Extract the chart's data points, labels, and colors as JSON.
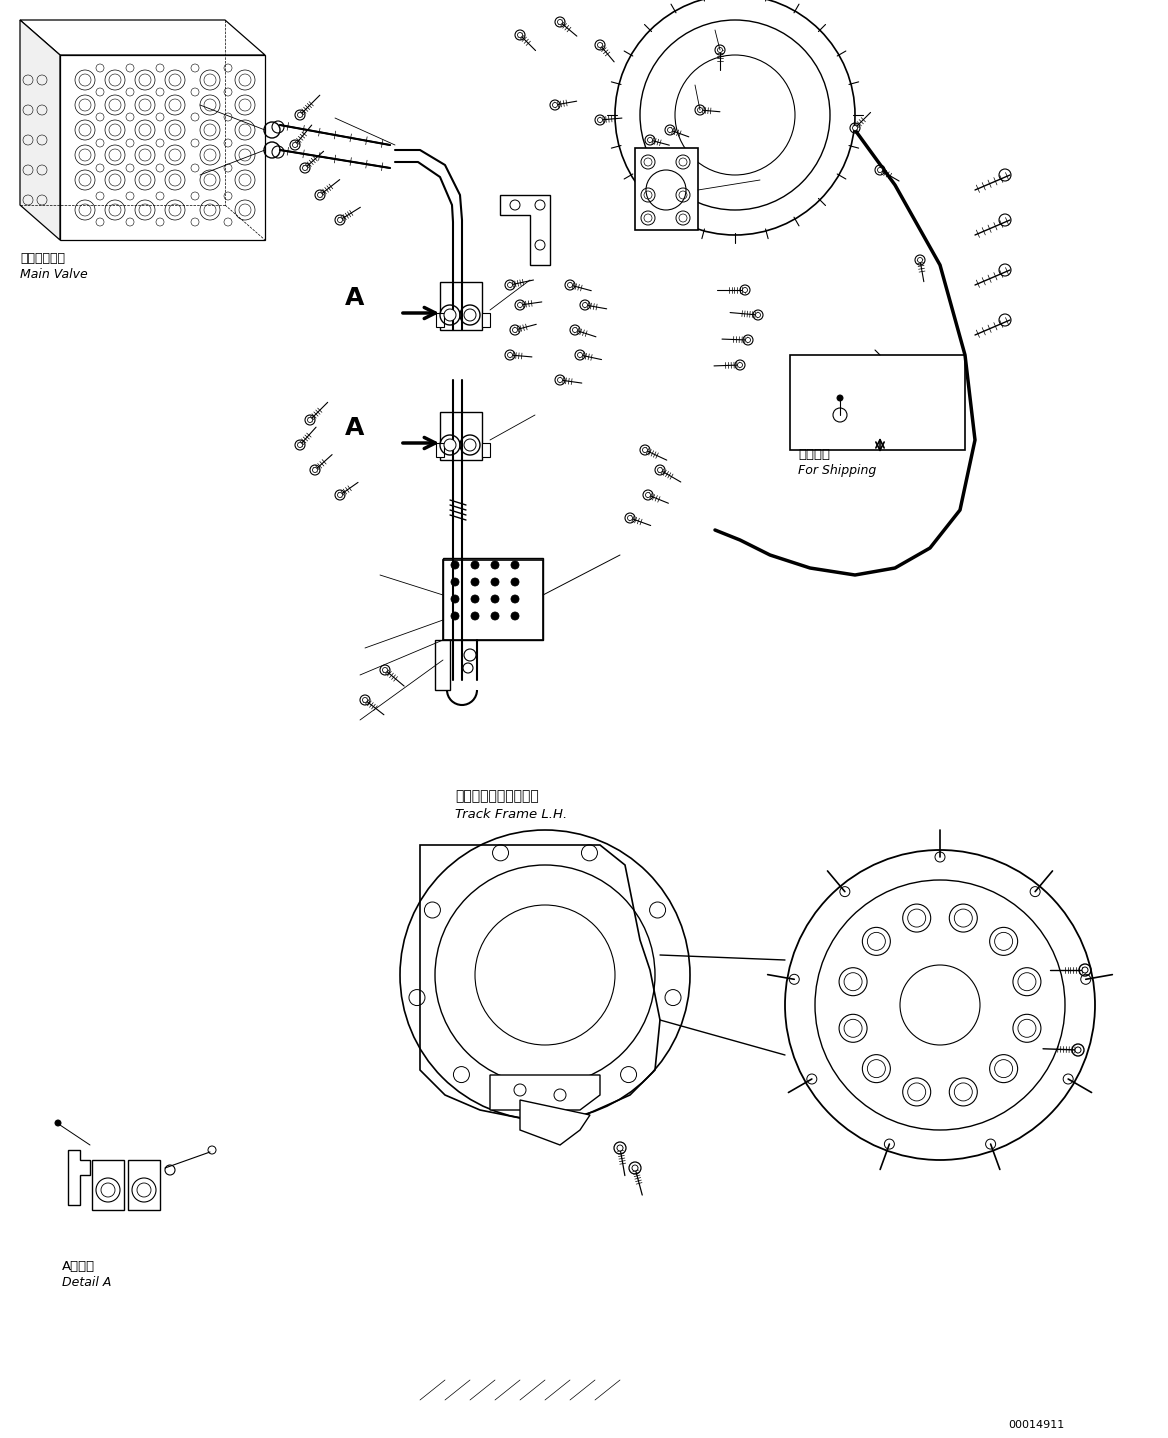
{
  "title": "",
  "background_color": "#ffffff",
  "line_color": "#000000",
  "page_id": "00014911",
  "labels": {
    "main_valve_jp": "メインバルブ",
    "main_valve_en": "Main Valve",
    "for_shipping_jp": "運損部品",
    "for_shipping_en": "For Shipping",
    "track_frame_jp": "トラックフレーム　左",
    "track_frame_en": "Track Frame L.H.",
    "detail_a_jp": "A　詳細",
    "detail_a_en": "Detail A",
    "label_a": "A"
  },
  "figsize": [
    11.68,
    14.38
  ],
  "dpi": 100
}
